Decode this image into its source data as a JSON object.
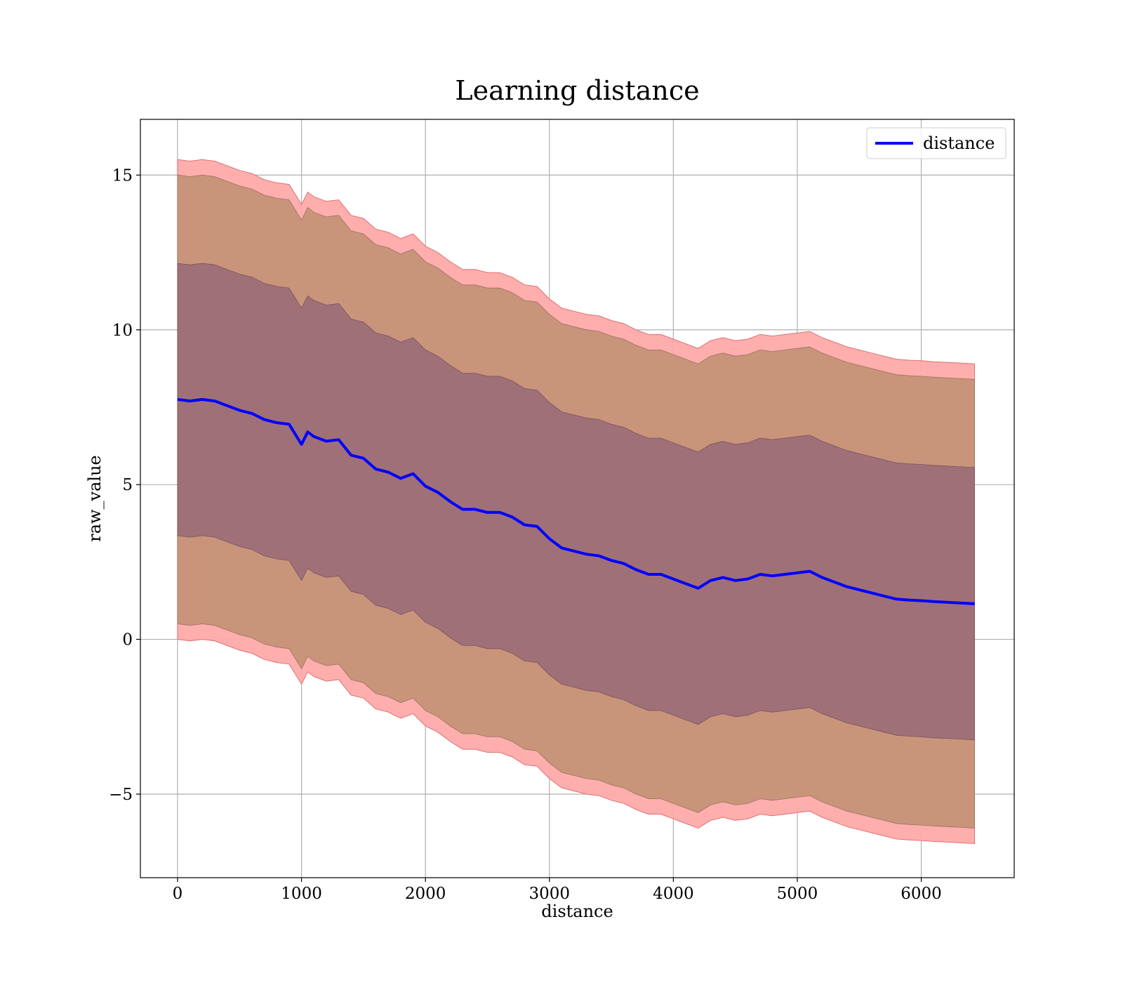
{
  "chart_data": {
    "type": "line",
    "title": "Learning distance",
    "xlabel": "distance",
    "ylabel": "raw_value",
    "xlim": [
      -300,
      6750
    ],
    "ylim": [
      -7.7,
      16.8
    ],
    "xticks": [
      0,
      1000,
      2000,
      3000,
      4000,
      5000,
      6000
    ],
    "yticks": [
      -5,
      0,
      5,
      10,
      15
    ],
    "ytick_labels": [
      "−5",
      "0",
      "5",
      "10",
      "15"
    ],
    "grid": true,
    "legend": {
      "position": "top-right",
      "entries": [
        "distance"
      ]
    },
    "colors": {
      "line": "#0000ff",
      "band_3sd": "#ffaaaa",
      "band_2sd": "#c8957a",
      "band_1sd": "#a07078",
      "band_edge": "#e07070"
    },
    "series": [
      {
        "name": "distance",
        "x": [
          0,
          100,
          200,
          300,
          400,
          500,
          600,
          700,
          800,
          900,
          1000,
          1050,
          1100,
          1200,
          1300,
          1400,
          1500,
          1600,
          1700,
          1800,
          1900,
          2000,
          2100,
          2200,
          2300,
          2400,
          2500,
          2600,
          2700,
          2800,
          2900,
          3000,
          3100,
          3200,
          3300,
          3400,
          3500,
          3600,
          3700,
          3800,
          3900,
          4000,
          4100,
          4200,
          4300,
          4400,
          4500,
          4600,
          4700,
          4800,
          4900,
          5000,
          5100,
          5200,
          5300,
          5400,
          5500,
          5600,
          5700,
          5800,
          5900,
          6000,
          6100,
          6200,
          6300,
          6430
        ],
        "values": [
          7.75,
          7.7,
          7.75,
          7.7,
          7.55,
          7.4,
          7.3,
          7.1,
          7.0,
          6.95,
          6.3,
          6.7,
          6.55,
          6.4,
          6.45,
          5.95,
          5.85,
          5.5,
          5.4,
          5.2,
          5.35,
          4.95,
          4.75,
          4.45,
          4.2,
          4.2,
          4.1,
          4.1,
          3.95,
          3.7,
          3.65,
          3.25,
          2.95,
          2.85,
          2.75,
          2.7,
          2.55,
          2.45,
          2.25,
          2.1,
          2.1,
          1.95,
          1.8,
          1.65,
          1.9,
          2.0,
          1.9,
          1.95,
          2.1,
          2.05,
          2.1,
          2.15,
          2.2,
          2.0,
          1.85,
          1.7,
          1.6,
          1.5,
          1.4,
          1.3,
          1.27,
          1.25,
          1.22,
          1.2,
          1.18,
          1.15
        ],
        "band_1sd": 4.4,
        "band_2sd": 7.25,
        "band_3sd": 7.75
      }
    ]
  }
}
